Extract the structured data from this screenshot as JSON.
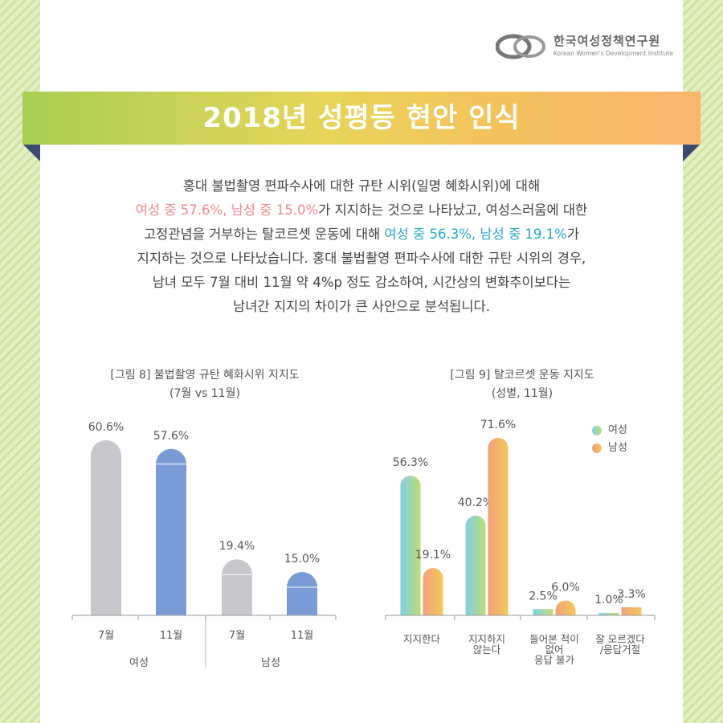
{
  "org": {
    "name_ko": "한국여성정책연구원",
    "name_en": "Korean Women's Development Institute"
  },
  "title": "2018년 성평등 현안 인식",
  "text": {
    "l1": "홍대 불법촬영 편파수사에 대한 규탄 시위(일명 혜화시위)에 대해",
    "l2_hl": "여성 중 57.6%, 남성 중 15.0%",
    "l2_rest": "가 지지하는 것으로 나타났고, 여성스러움에 대한",
    "l3_pre": "고정관념을 거부하는 탈코르셋 운동에 대해 ",
    "l3_hl": "여성 중 56.3%, 남성 중 19.1%",
    "l3_post": "가",
    "l4": "지지하는 것으로 나타났습니다. 홍대 불법촬영 편파수사에 대한 규탄 시위의 경우,",
    "l5": "남녀 모두 7월 대비 11월 약 4%p 정도 감소하여, 시간상의 변화추이보다는",
    "l6": "남녀간 지지의 차이가 큰 사안으로 분석됩니다."
  },
  "fig8": {
    "title": "[그림 8] 불법촬영 규탄 혜화시위 지지도",
    "subtitle": "(7월 vs 11월)"
  },
  "fig9": {
    "title": "[그림 9] 탈코르셋 운동 지지도",
    "subtitle": "(성별, 11월)"
  },
  "legend": {
    "female": "여성",
    "male": "남성"
  },
  "colors": {
    "gray": "#c8c8cc",
    "blue": "#7a9bd6",
    "female_gradient": [
      "#7fd0e6",
      "#c0dd76"
    ],
    "male_gradient": [
      "#f0a27a",
      "#f6c85c"
    ],
    "pink": "#ef8a8f",
    "teal": "#27a7c9"
  },
  "chart_data": [
    {
      "type": "bar",
      "groups": [
        "여성",
        "남성"
      ],
      "categories": [
        "7월",
        "11월",
        "7월",
        "11월"
      ],
      "values": [
        60.6,
        57.6,
        19.4,
        15.0
      ],
      "labels": [
        "60.6%",
        "57.6%",
        "19.4%",
        "15.0%"
      ],
      "ylim": [
        0,
        70
      ]
    },
    {
      "type": "bar",
      "categories": [
        "지지한다",
        "지지하지 않는다",
        "들어본 적이 없어 응답 불가",
        "잘 모르겠다 /응답거절"
      ],
      "category_lines": [
        [
          "지지한다"
        ],
        [
          "지지하지",
          "않는다"
        ],
        [
          "들어본 적이",
          "없어",
          "응답 불가"
        ],
        [
          "잘 모르겠다",
          "/응답거절"
        ]
      ],
      "series": [
        {
          "name": "여성",
          "values": [
            56.3,
            40.2,
            2.5,
            1.0
          ],
          "labels": [
            "56.3%",
            "40.2%",
            "2.5%",
            "1.0%"
          ]
        },
        {
          "name": "남성",
          "values": [
            19.1,
            71.6,
            6.0,
            3.3
          ],
          "labels": [
            "19.1%",
            "71.6%",
            "6.0%",
            "3.3%"
          ]
        }
      ],
      "ylim": [
        0,
        80
      ],
      "legend": "top-right"
    }
  ]
}
